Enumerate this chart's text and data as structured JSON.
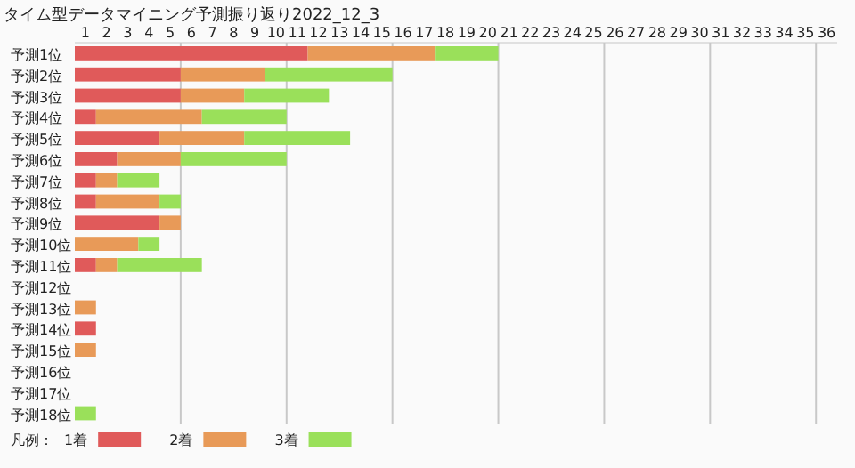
{
  "chart_data": {
    "type": "bar",
    "orientation": "horizontal",
    "stacked": true,
    "title": "タイム型データマイニング予測振り返り2022_12_3",
    "categories": [
      "予測1位",
      "予測2位",
      "予測3位",
      "予測4位",
      "予測5位",
      "予測6位",
      "予測7位",
      "予測8位",
      "予測9位",
      "予測10位",
      "予測11位",
      "予測12位",
      "予測13位",
      "予測14位",
      "予測15位",
      "予測16位",
      "予測17位",
      "予測18位"
    ],
    "series": [
      {
        "name": "1着",
        "color": "#e05a5a",
        "values": [
          11,
          5,
          5,
          1,
          4,
          2,
          1,
          1,
          4,
          0,
          1,
          0,
          0,
          1,
          0,
          0,
          0,
          0
        ]
      },
      {
        "name": "2着",
        "color": "#e89a58",
        "values": [
          6,
          4,
          3,
          5,
          4,
          3,
          1,
          3,
          1,
          3,
          1,
          0,
          1,
          0,
          1,
          0,
          0,
          0
        ]
      },
      {
        "name": "3着",
        "color": "#9ae05a",
        "values": [
          3,
          6,
          4,
          4,
          5,
          5,
          2,
          1,
          0,
          1,
          4,
          0,
          0,
          0,
          0,
          0,
          0,
          1
        ]
      }
    ],
    "xlim": [
      0,
      36
    ],
    "xticks": [
      {
        "value": 0.5,
        "label": "1"
      },
      {
        "value": 1.5,
        "label": "2"
      },
      {
        "value": 2.5,
        "label": "3"
      },
      {
        "value": 3.5,
        "label": "4"
      },
      {
        "value": 4.5,
        "label": "5"
      },
      {
        "value": 5.5,
        "label": "6"
      },
      {
        "value": 6.5,
        "label": "7"
      },
      {
        "value": 7.5,
        "label": "8"
      },
      {
        "value": 8.5,
        "label": "9"
      },
      {
        "value": 9.5,
        "label": "10"
      },
      {
        "value": 10.5,
        "label": "11"
      },
      {
        "value": 11.5,
        "label": "12"
      },
      {
        "value": 12.5,
        "label": "13"
      },
      {
        "value": 13.5,
        "label": "14"
      },
      {
        "value": 14.5,
        "label": "15"
      },
      {
        "value": 15.5,
        "label": "16"
      },
      {
        "value": 16.5,
        "label": "17"
      },
      {
        "value": 17.5,
        "label": "18"
      },
      {
        "value": 18.5,
        "label": "19"
      },
      {
        "value": 19.5,
        "label": "20"
      },
      {
        "value": 20.5,
        "label": "21"
      },
      {
        "value": 21.5,
        "label": "22"
      },
      {
        "value": 22.5,
        "label": "23"
      },
      {
        "value": 23.5,
        "label": "24"
      },
      {
        "value": 24.5,
        "label": "25"
      },
      {
        "value": 25.5,
        "label": "26"
      },
      {
        "value": 26.5,
        "label": "27"
      },
      {
        "value": 27.5,
        "label": "28"
      },
      {
        "value": 28.5,
        "label": "29"
      },
      {
        "value": 29.5,
        "label": "30"
      },
      {
        "value": 30.5,
        "label": "31"
      },
      {
        "value": 31.5,
        "label": "32"
      },
      {
        "value": 32.5,
        "label": "33"
      },
      {
        "value": 33.5,
        "label": "34"
      },
      {
        "value": 34.5,
        "label": "35"
      },
      {
        "value": 35.5,
        "label": "36"
      }
    ],
    "ref_lines": [
      {
        "axis": "x",
        "value": 5,
        "color": "#c8c8c8"
      },
      {
        "axis": "x",
        "value": 10,
        "color": "#c8c8c8"
      },
      {
        "axis": "x",
        "value": 15,
        "color": "#c8c8c8"
      },
      {
        "axis": "x",
        "value": 20,
        "color": "#c8c8c8"
      },
      {
        "axis": "x",
        "value": 25,
        "color": "#c8c8c8"
      },
      {
        "axis": "x",
        "value": 30,
        "color": "#c8c8c8"
      },
      {
        "axis": "x",
        "value": 35,
        "color": "#c8c8c8"
      }
    ],
    "legend": "bottom left",
    "legend_title": "凡例："
  }
}
